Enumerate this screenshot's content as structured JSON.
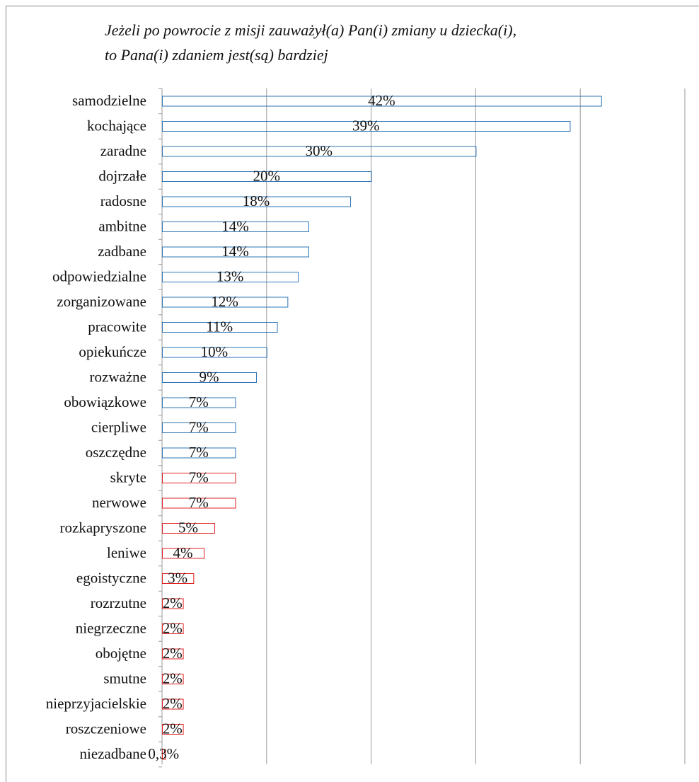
{
  "chart_data": {
    "type": "barh",
    "title": [
      "Jeżeli po powrocie z misji zauważył(a) Pan(i) zmiany u dziecka(i),",
      "to Pana(i) zdaniem jest(są) bardziej"
    ],
    "categories": [
      "samodzielne",
      "kochające",
      "zaradne",
      "dojrzałe",
      "radosne",
      "ambitne",
      "zadbane",
      "odpowiedzialne",
      "zorganizowane",
      "pracowite",
      "opiekuńcze",
      "rozważne",
      "obowiązkowe",
      "cierpliwe",
      "oszczędne",
      "skryte",
      "nerwowe",
      "rozkapryszone",
      "leniwe",
      "egoistyczne",
      "rozrzutne",
      "niegrzeczne",
      "obojętne",
      "smutne",
      "nieprzyjacielskie",
      "roszczeniowe",
      "niezadbane"
    ],
    "values": [
      42,
      39,
      30,
      20,
      18,
      14,
      14,
      13,
      12,
      11,
      10,
      9,
      7,
      7,
      7,
      7,
      7,
      5,
      4,
      3,
      2,
      2,
      2,
      2,
      2,
      2,
      0.3
    ],
    "value_labels": [
      "42%",
      "39%",
      "30%",
      "20%",
      "18%",
      "14%",
      "14%",
      "13%",
      "12%",
      "11%",
      "10%",
      "9%",
      "7%",
      "7%",
      "7%",
      "7%",
      "7%",
      "5%",
      "4%",
      "3%",
      "2%",
      "2%",
      "2%",
      "2%",
      "2%",
      "2%",
      "0,3%"
    ],
    "colors": [
      "#2e75b6",
      "#2e75b6",
      "#2e75b6",
      "#2e75b6",
      "#2e75b6",
      "#2e75b6",
      "#2e75b6",
      "#2e75b6",
      "#2e75b6",
      "#2e75b6",
      "#2e75b6",
      "#2e75b6",
      "#2e75b6",
      "#2e75b6",
      "#2e75b6",
      "#e02020",
      "#e02020",
      "#e02020",
      "#e02020",
      "#e02020",
      "#e02020",
      "#e02020",
      "#e02020",
      "#e02020",
      "#e02020",
      "#e02020",
      "#e02020"
    ],
    "xlim": [
      0,
      50
    ],
    "xticks": [
      0,
      10,
      20,
      30,
      40,
      50
    ],
    "grid": true
  }
}
